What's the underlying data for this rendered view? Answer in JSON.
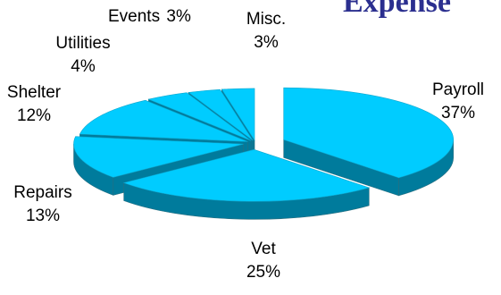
{
  "chart_data": {
    "type": "pie",
    "title": "Expense",
    "subtitle": "",
    "exploded": true,
    "three_d": true,
    "slices": [
      {
        "label": "Payroll",
        "value": 37,
        "display": "37%"
      },
      {
        "label": "Vet",
        "value": 25,
        "display": "25%"
      },
      {
        "label": "Repairs",
        "value": 13,
        "display": "13%"
      },
      {
        "label": "Shelter",
        "value": 12,
        "display": "12%"
      },
      {
        "label": "Utilities",
        "value": 4,
        "display": "4%"
      },
      {
        "label": "Events",
        "value": 3,
        "display": "3%"
      },
      {
        "label": "Misc.",
        "value": 3,
        "display": "3%"
      }
    ],
    "colors": {
      "top": "#00ccff",
      "side": "#007b9c",
      "edge": "#2b6f80",
      "title": "#2b2f8f"
    }
  }
}
